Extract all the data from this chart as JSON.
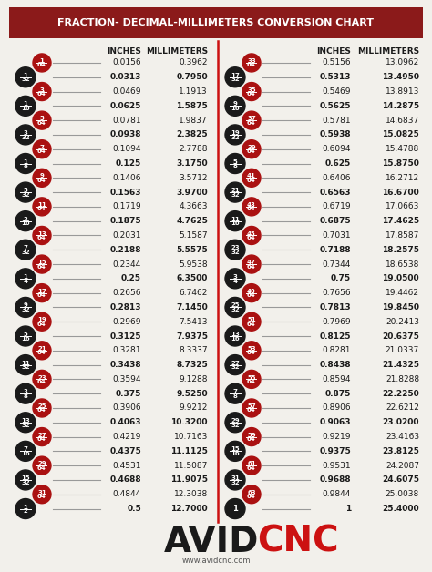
{
  "title": "FRACTION- DECIMAL-MILLIMETERS CONVERSION CHART",
  "title_bg": "#8B1A1A",
  "title_color": "#FFFFFF",
  "bg_color": "#F2F0EB",
  "header_inches": "INCHES",
  "header_mm": "MILLIMETERS",
  "left_rows": [
    {
      "frac": "1/64",
      "bold": false,
      "inches": "0.0156",
      "mm": "0.3962"
    },
    {
      "frac": "1/32",
      "bold": true,
      "inches": "0.0313",
      "mm": "0.7950"
    },
    {
      "frac": "3/64",
      "bold": false,
      "inches": "0.0469",
      "mm": "1.1913"
    },
    {
      "frac": "1/16",
      "bold": true,
      "inches": "0.0625",
      "mm": "1.5875"
    },
    {
      "frac": "5/64",
      "bold": false,
      "inches": "0.0781",
      "mm": "1.9837"
    },
    {
      "frac": "3/32",
      "bold": true,
      "inches": "0.0938",
      "mm": "2.3825"
    },
    {
      "frac": "7/64",
      "bold": false,
      "inches": "0.1094",
      "mm": "2.7788"
    },
    {
      "frac": "1/8",
      "bold": true,
      "inches": "0.125",
      "mm": "3.1750"
    },
    {
      "frac": "9/64",
      "bold": false,
      "inches": "0.1406",
      "mm": "3.5712"
    },
    {
      "frac": "5/32",
      "bold": true,
      "inches": "0.1563",
      "mm": "3.9700"
    },
    {
      "frac": "11/64",
      "bold": false,
      "inches": "0.1719",
      "mm": "4.3663"
    },
    {
      "frac": "3/16",
      "bold": true,
      "inches": "0.1875",
      "mm": "4.7625"
    },
    {
      "frac": "13/64",
      "bold": false,
      "inches": "0.2031",
      "mm": "5.1587"
    },
    {
      "frac": "7/32",
      "bold": true,
      "inches": "0.2188",
      "mm": "5.5575"
    },
    {
      "frac": "15/64",
      "bold": false,
      "inches": "0.2344",
      "mm": "5.9538"
    },
    {
      "frac": "1/4",
      "bold": true,
      "inches": "0.25",
      "mm": "6.3500"
    },
    {
      "frac": "17/64",
      "bold": false,
      "inches": "0.2656",
      "mm": "6.7462"
    },
    {
      "frac": "9/32",
      "bold": true,
      "inches": "0.2813",
      "mm": "7.1450"
    },
    {
      "frac": "19/64",
      "bold": false,
      "inches": "0.2969",
      "mm": "7.5413"
    },
    {
      "frac": "5/16",
      "bold": true,
      "inches": "0.3125",
      "mm": "7.9375"
    },
    {
      "frac": "21/64",
      "bold": false,
      "inches": "0.3281",
      "mm": "8.3337"
    },
    {
      "frac": "11/32",
      "bold": true,
      "inches": "0.3438",
      "mm": "8.7325"
    },
    {
      "frac": "23/64",
      "bold": false,
      "inches": "0.3594",
      "mm": "9.1288"
    },
    {
      "frac": "3/8",
      "bold": true,
      "inches": "0.375",
      "mm": "9.5250"
    },
    {
      "frac": "25/64",
      "bold": false,
      "inches": "0.3906",
      "mm": "9.9212"
    },
    {
      "frac": "13/32",
      "bold": true,
      "inches": "0.4063",
      "mm": "10.3200"
    },
    {
      "frac": "27/64",
      "bold": false,
      "inches": "0.4219",
      "mm": "10.7163"
    },
    {
      "frac": "7/16",
      "bold": true,
      "inches": "0.4375",
      "mm": "11.1125"
    },
    {
      "frac": "29/64",
      "bold": false,
      "inches": "0.4531",
      "mm": "11.5087"
    },
    {
      "frac": "15/32",
      "bold": true,
      "inches": "0.4688",
      "mm": "11.9075"
    },
    {
      "frac": "31/64",
      "bold": false,
      "inches": "0.4844",
      "mm": "12.3038"
    },
    {
      "frac": "1/2",
      "bold": true,
      "inches": "0.5",
      "mm": "12.7000"
    }
  ],
  "right_rows": [
    {
      "frac": "33/64",
      "bold": false,
      "inches": "0.5156",
      "mm": "13.0962"
    },
    {
      "frac": "17/32",
      "bold": true,
      "inches": "0.5313",
      "mm": "13.4950"
    },
    {
      "frac": "35/64",
      "bold": false,
      "inches": "0.5469",
      "mm": "13.8913"
    },
    {
      "frac": "9/16",
      "bold": true,
      "inches": "0.5625",
      "mm": "14.2875"
    },
    {
      "frac": "37/64",
      "bold": false,
      "inches": "0.5781",
      "mm": "14.6837"
    },
    {
      "frac": "19/32",
      "bold": true,
      "inches": "0.5938",
      "mm": "15.0825"
    },
    {
      "frac": "39/64",
      "bold": false,
      "inches": "0.6094",
      "mm": "15.4788"
    },
    {
      "frac": "5/8",
      "bold": true,
      "inches": "0.625",
      "mm": "15.8750"
    },
    {
      "frac": "41/64",
      "bold": false,
      "inches": "0.6406",
      "mm": "16.2712"
    },
    {
      "frac": "21/32",
      "bold": true,
      "inches": "0.6563",
      "mm": "16.6700"
    },
    {
      "frac": "43/64",
      "bold": false,
      "inches": "0.6719",
      "mm": "17.0663"
    },
    {
      "frac": "11/16",
      "bold": true,
      "inches": "0.6875",
      "mm": "17.4625"
    },
    {
      "frac": "45/64",
      "bold": false,
      "inches": "0.7031",
      "mm": "17.8587"
    },
    {
      "frac": "23/32",
      "bold": true,
      "inches": "0.7188",
      "mm": "18.2575"
    },
    {
      "frac": "47/64",
      "bold": false,
      "inches": "0.7344",
      "mm": "18.6538"
    },
    {
      "frac": "3/4",
      "bold": true,
      "inches": "0.75",
      "mm": "19.0500"
    },
    {
      "frac": "49/64",
      "bold": false,
      "inches": "0.7656",
      "mm": "19.4462"
    },
    {
      "frac": "25/32",
      "bold": true,
      "inches": "0.7813",
      "mm": "19.8450"
    },
    {
      "frac": "51/64",
      "bold": false,
      "inches": "0.7969",
      "mm": "20.2413"
    },
    {
      "frac": "13/16",
      "bold": true,
      "inches": "0.8125",
      "mm": "20.6375"
    },
    {
      "frac": "53/64",
      "bold": false,
      "inches": "0.8281",
      "mm": "21.0337"
    },
    {
      "frac": "27/32",
      "bold": true,
      "inches": "0.8438",
      "mm": "21.4325"
    },
    {
      "frac": "55/64",
      "bold": false,
      "inches": "0.8594",
      "mm": "21.8288"
    },
    {
      "frac": "7/8",
      "bold": true,
      "inches": "0.875",
      "mm": "22.2250"
    },
    {
      "frac": "57/64",
      "bold": false,
      "inches": "0.8906",
      "mm": "22.6212"
    },
    {
      "frac": "29/32",
      "bold": true,
      "inches": "0.9063",
      "mm": "23.0200"
    },
    {
      "frac": "59/64",
      "bold": false,
      "inches": "0.9219",
      "mm": "23.4163"
    },
    {
      "frac": "15/16",
      "bold": true,
      "inches": "0.9375",
      "mm": "23.8125"
    },
    {
      "frac": "61/64",
      "bold": false,
      "inches": "0.9531",
      "mm": "24.2087"
    },
    {
      "frac": "31/32",
      "bold": true,
      "inches": "0.9688",
      "mm": "24.6075"
    },
    {
      "frac": "63/64",
      "bold": false,
      "inches": "0.9844",
      "mm": "25.0038"
    },
    {
      "frac": "1",
      "bold": true,
      "inches": "1",
      "mm": "25.4000"
    }
  ],
  "website": "www.avidcnc.com",
  "black_color": "#1A1A1A",
  "red_color": "#AA1111"
}
